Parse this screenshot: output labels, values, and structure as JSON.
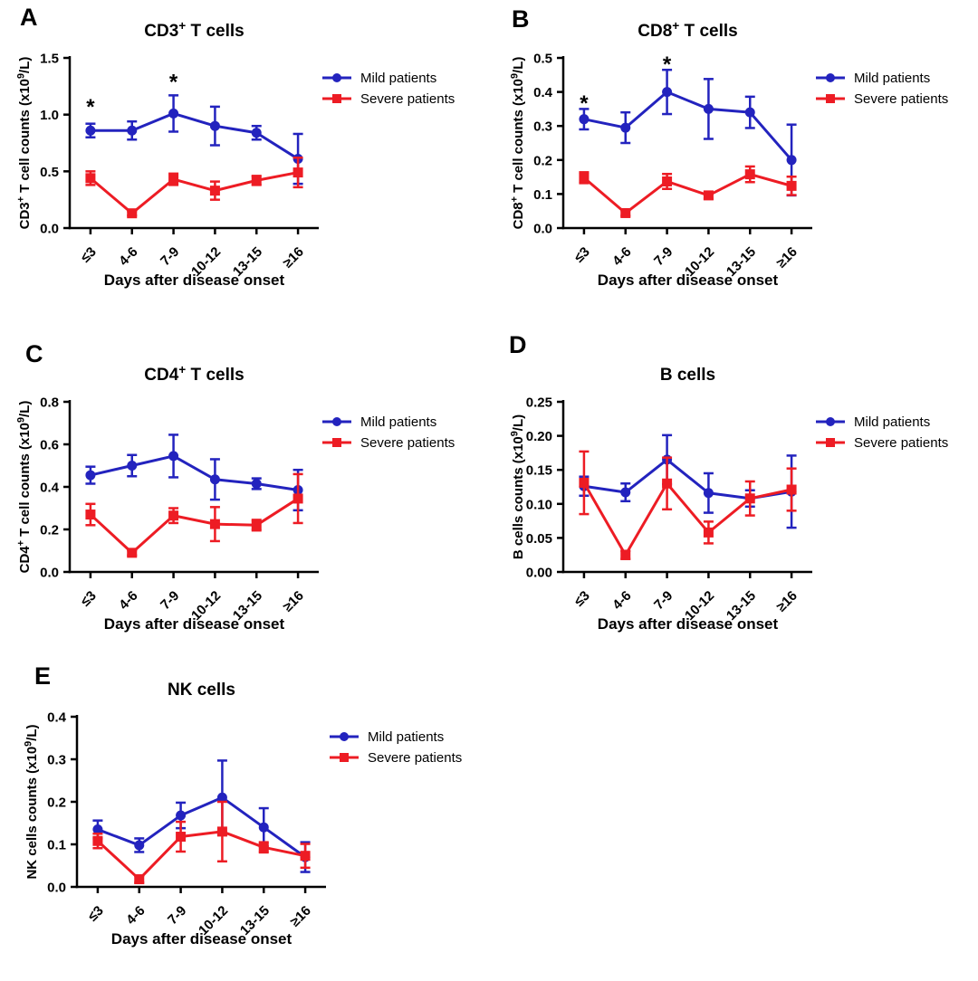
{
  "figure": {
    "background": "#ffffff",
    "xlabel": "Days after disease onset",
    "legend": [
      "Mild patients",
      "Severe patients"
    ]
  },
  "colors": {
    "mild": "#2323be",
    "severe": "#ed1c24",
    "axis": "#000000",
    "text": "#000000"
  },
  "chart_data": [
    {
      "type": "line",
      "panel_label": "A",
      "title": "CD3^+^ T cells",
      "xlabel": "Days after disease onset",
      "ylabel": "CD3^+^ T cell counts (x10^9^/L)",
      "ylim": [
        0,
        1.5
      ],
      "yticks": [
        "0.0",
        "0.5",
        "1.0",
        "1.5"
      ],
      "categories": [
        "≤3",
        "4-6",
        "7-9",
        "10-12",
        "13-15",
        "≥16"
      ],
      "legend_position": "right",
      "grid": false,
      "series": [
        {
          "name": "Mild patients",
          "color_key": "mild",
          "marker": "circle",
          "values": [
            0.86,
            0.86,
            1.01,
            0.9,
            0.84,
            0.61
          ],
          "errors": [
            0.06,
            0.08,
            0.16,
            0.17,
            0.06,
            0.22
          ]
        },
        {
          "name": "Severe patients",
          "color_key": "severe",
          "marker": "square",
          "values": [
            0.44,
            0.13,
            0.43,
            0.33,
            0.42,
            0.49
          ],
          "errors": [
            0.06,
            0.02,
            0.05,
            0.08,
            0.04,
            0.13
          ]
        }
      ],
      "significance": [
        {
          "category_index": 0,
          "y": 1.1,
          "symbol": "*"
        },
        {
          "category_index": 2,
          "y": 1.32,
          "symbol": "*"
        }
      ]
    },
    {
      "type": "line",
      "panel_label": "B",
      "title": "CD8^+^ T cells",
      "xlabel": "Days after disease onset",
      "ylabel": "CD8^+^ T cell counts (x10^9^/L)",
      "ylim": [
        0,
        0.5
      ],
      "yticks": [
        "0.0",
        "0.1",
        "0.2",
        "0.3",
        "0.4",
        "0.5"
      ],
      "categories": [
        "≤3",
        "4-6",
        "7-9",
        "10-12",
        "13-15",
        "≥16"
      ],
      "legend_position": "right",
      "grid": false,
      "series": [
        {
          "name": "Mild patients",
          "color_key": "mild",
          "marker": "circle",
          "values": [
            0.32,
            0.295,
            0.4,
            0.35,
            0.34,
            0.2
          ],
          "errors": [
            0.03,
            0.045,
            0.065,
            0.088,
            0.046,
            0.104
          ]
        },
        {
          "name": "Severe patients",
          "color_key": "severe",
          "marker": "square",
          "values": [
            0.148,
            0.044,
            0.137,
            0.096,
            0.158,
            0.124
          ],
          "errors": [
            0.016,
            0.008,
            0.022,
            0.01,
            0.023,
            0.027
          ]
        }
      ],
      "significance": [
        {
          "category_index": 0,
          "y": 0.378,
          "symbol": "*"
        },
        {
          "category_index": 2,
          "y": 0.492,
          "symbol": "*"
        }
      ]
    },
    {
      "type": "line",
      "panel_label": "C",
      "title": "CD4^+^ T cells",
      "xlabel": "Days after disease onset",
      "ylabel": "CD4^+^ T cell counts (x10^9^/L)",
      "ylim": [
        0,
        0.8
      ],
      "yticks": [
        "0.0",
        "0.2",
        "0.4",
        "0.6",
        "0.8"
      ],
      "categories": [
        "≤3",
        "4-6",
        "7-9",
        "10-12",
        "13-15",
        "≥16"
      ],
      "legend_position": "right",
      "grid": false,
      "series": [
        {
          "name": "Mild patients",
          "color_key": "mild",
          "marker": "circle",
          "values": [
            0.455,
            0.5,
            0.545,
            0.435,
            0.415,
            0.385
          ],
          "errors": [
            0.04,
            0.05,
            0.1,
            0.095,
            0.025,
            0.095
          ]
        },
        {
          "name": "Severe patients",
          "color_key": "severe",
          "marker": "square",
          "values": [
            0.27,
            0.09,
            0.265,
            0.225,
            0.22,
            0.345
          ],
          "errors": [
            0.05,
            0.012,
            0.035,
            0.08,
            0.025,
            0.115
          ]
        }
      ],
      "significance": []
    },
    {
      "type": "line",
      "panel_label": "D",
      "title": "B cells",
      "xlabel": "Days after disease onset",
      "ylabel": "B cells counts (x10^9^/L)",
      "ylim": [
        0,
        0.25
      ],
      "yticks": [
        "0.00",
        "0.05",
        "0.10",
        "0.15",
        "0.20",
        "0.25"
      ],
      "categories": [
        "≤3",
        "4-6",
        "7-9",
        "10-12",
        "13-15",
        "≥16"
      ],
      "legend_position": "right",
      "grid": false,
      "series": [
        {
          "name": "Mild patients",
          "color_key": "mild",
          "marker": "circle",
          "values": [
            0.126,
            0.117,
            0.165,
            0.116,
            0.108,
            0.118
          ],
          "errors": [
            0.014,
            0.013,
            0.036,
            0.029,
            0.012,
            0.053
          ]
        },
        {
          "name": "Severe patients",
          "color_key": "severe",
          "marker": "square",
          "values": [
            0.131,
            0.025,
            0.13,
            0.058,
            0.108,
            0.121
          ],
          "errors": [
            0.046,
            0.006,
            0.038,
            0.016,
            0.025,
            0.031
          ]
        }
      ],
      "significance": []
    },
    {
      "type": "line",
      "panel_label": "E",
      "title": "NK cells",
      "xlabel": "Days after disease onset",
      "ylabel": "NK cells counts (x10^9^/L)",
      "ylim": [
        0,
        0.4
      ],
      "yticks": [
        "0.0",
        "0.1",
        "0.2",
        "0.3",
        "0.4"
      ],
      "categories": [
        "≤3",
        "4-6",
        "7-9",
        "10-12",
        "13-15",
        "≥16"
      ],
      "legend_position": "right",
      "grid": false,
      "series": [
        {
          "name": "Mild patients",
          "color_key": "mild",
          "marker": "circle",
          "values": [
            0.135,
            0.098,
            0.168,
            0.21,
            0.14,
            0.07
          ],
          "errors": [
            0.021,
            0.016,
            0.03,
            0.087,
            0.045,
            0.035
          ]
        },
        {
          "name": "Severe patients",
          "color_key": "severe",
          "marker": "square",
          "values": [
            0.108,
            0.018,
            0.118,
            0.13,
            0.093,
            0.073
          ],
          "errors": [
            0.017,
            0.008,
            0.035,
            0.07,
            0.012,
            0.028
          ]
        }
      ],
      "significance": []
    }
  ]
}
